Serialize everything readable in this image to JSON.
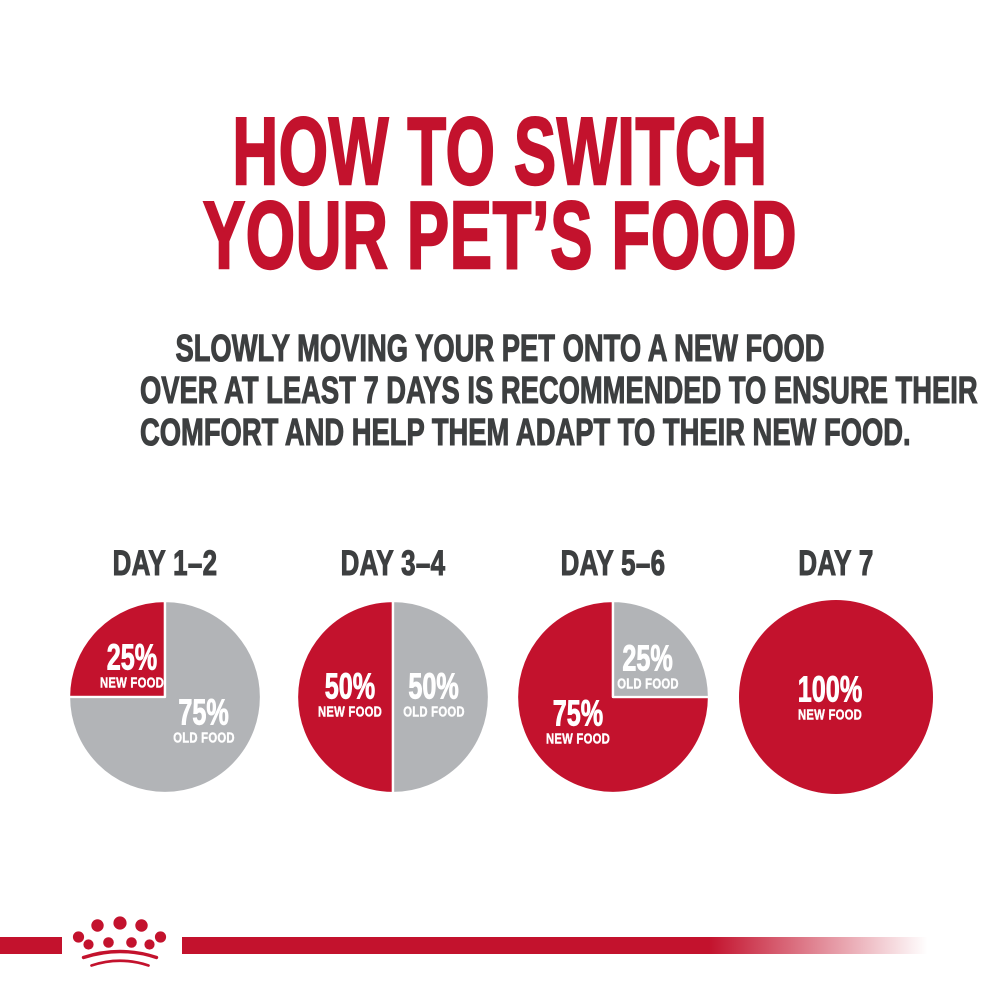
{
  "title": {
    "line1": "HOW TO SWITCH",
    "line2": "YOUR PET’S FOOD"
  },
  "subtitle": {
    "line1": "SLOWLY MOVING YOUR PET ONTO A NEW FOOD",
    "line2": "OVER AT LEAST 7 DAYS IS RECOMMENDED TO ENSURE THEIR",
    "line3": "COMFORT AND HELP THEM ADAPT TO THEIR NEW FOOD."
  },
  "colors": {
    "brand_red": "#c3122d",
    "old_food_gray": "#b2b4b7",
    "text_dark": "#3d3f40",
    "label_white": "#ffffff",
    "background": "#ffffff"
  },
  "chart_data": {
    "type": "pie",
    "legend_position": "labels inside slices",
    "charts": [
      {
        "title": "DAY 1–2",
        "slices": [
          {
            "value": 25,
            "label": "25%",
            "name": "NEW FOOD",
            "color": "#c3122d",
            "start_deg": 270
          },
          {
            "value": 75,
            "label": "75%",
            "name": "OLD FOOD",
            "color": "#b2b4b7",
            "start_deg": 0
          }
        ]
      },
      {
        "title": "DAY 3–4",
        "slices": [
          {
            "value": 50,
            "label": "50%",
            "name": "NEW FOOD",
            "color": "#c3122d",
            "start_deg": 180
          },
          {
            "value": 50,
            "label": "50%",
            "name": "OLD FOOD",
            "color": "#b2b4b7",
            "start_deg": 0
          }
        ]
      },
      {
        "title": "DAY 5–6",
        "slices": [
          {
            "value": 75,
            "label": "75%",
            "name": "NEW FOOD",
            "color": "#c3122d",
            "start_deg": 90
          },
          {
            "value": 25,
            "label": "25%",
            "name": "OLD FOOD",
            "color": "#b2b4b7",
            "start_deg": 0
          }
        ]
      },
      {
        "title": "DAY 7",
        "slices": [
          {
            "value": 100,
            "label": "100%",
            "name": "NEW FOOD",
            "color": "#c3122d",
            "start_deg": 0
          }
        ]
      }
    ]
  },
  "footer": {
    "logo_name": "royal-canin-crown"
  }
}
